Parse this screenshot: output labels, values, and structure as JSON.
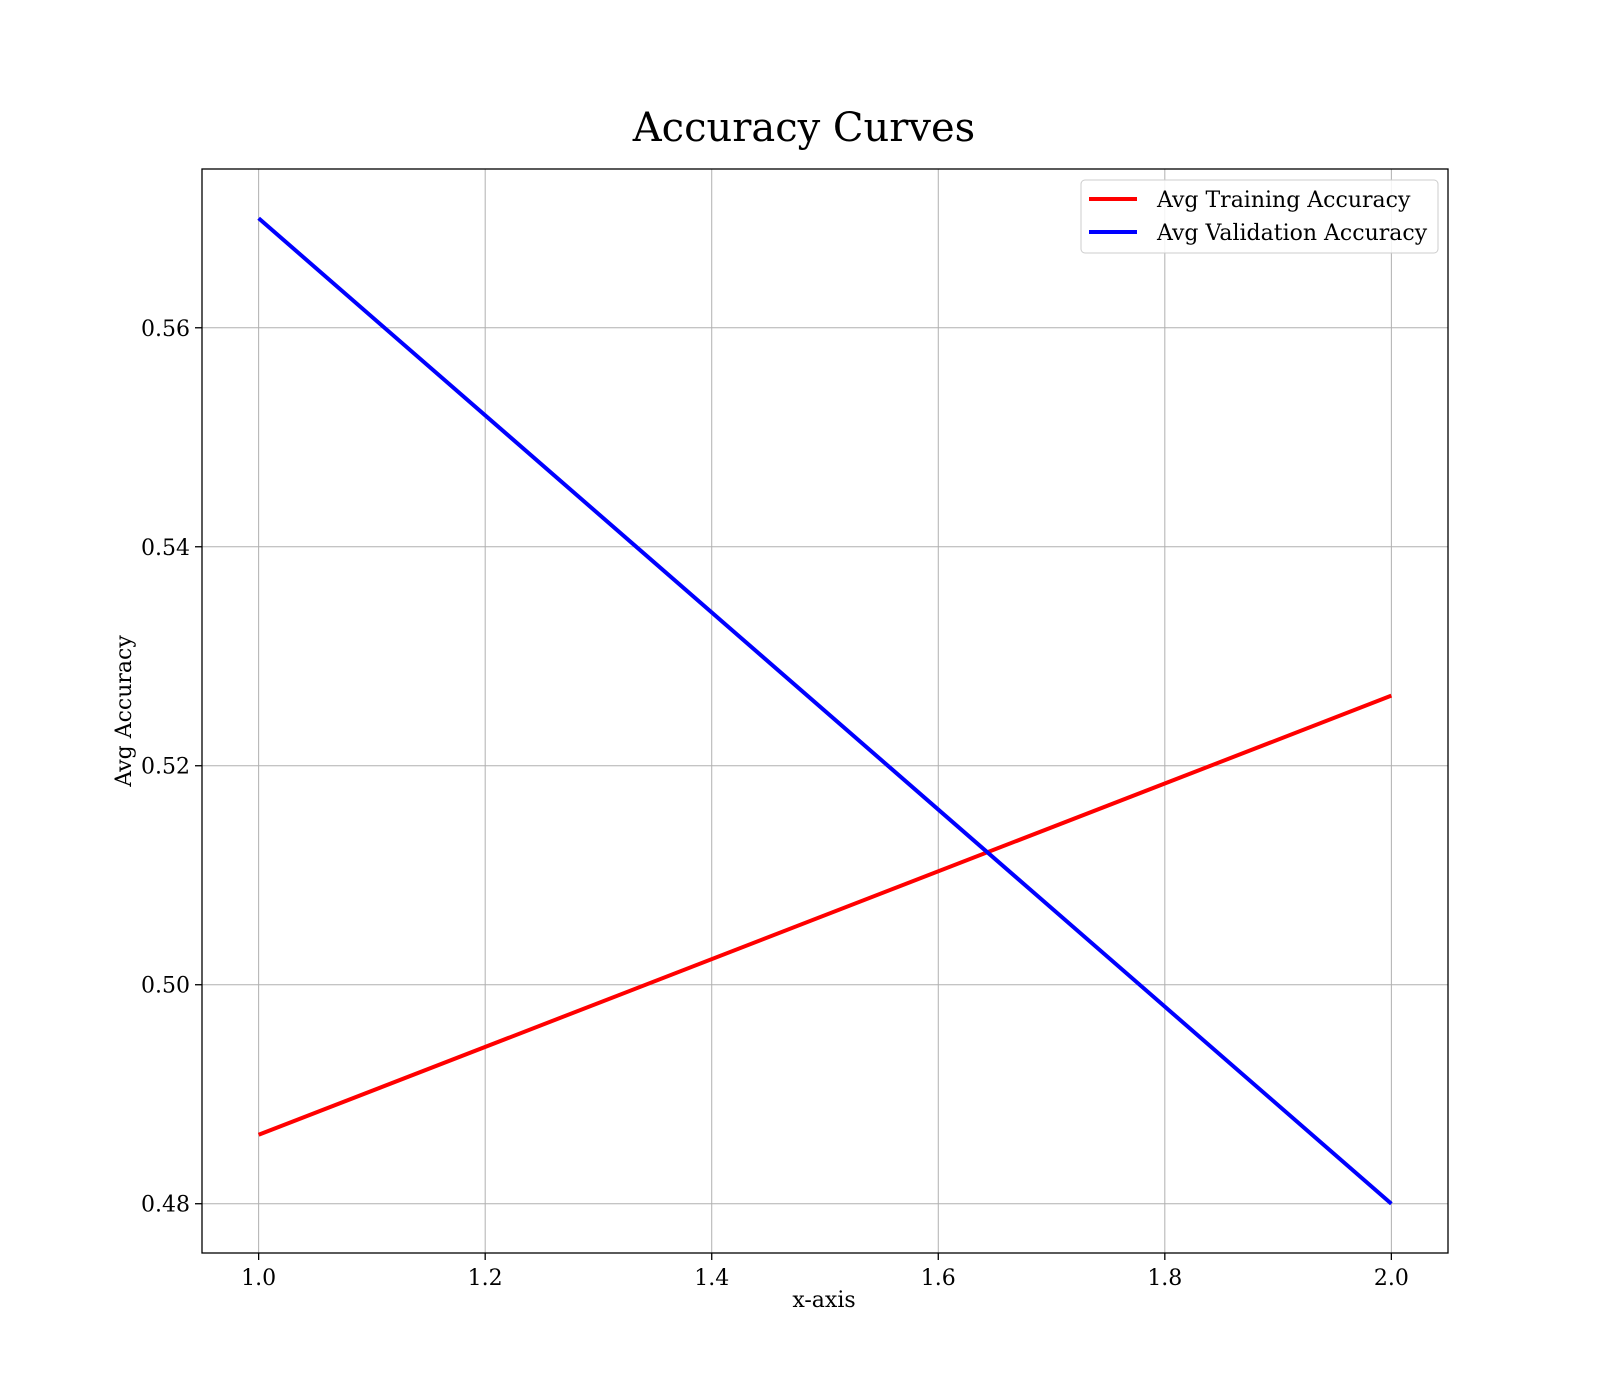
{
  "chart_data": {
    "type": "line",
    "title": "Accuracy Curves",
    "xlabel": "x-axis",
    "ylabel": "Avg Accuracy",
    "xlim": [
      0.95,
      2.05
    ],
    "ylim": [
      0.4755,
      0.5745
    ],
    "x_ticks": [
      "1.0",
      "1.2",
      "1.4",
      "1.6",
      "1.8",
      "2.0"
    ],
    "y_ticks": [
      "0.48",
      "0.50",
      "0.52",
      "0.54",
      "0.56"
    ],
    "grid": true,
    "legend_position": "top-right",
    "series": [
      {
        "name": "Avg Training Accuracy",
        "color": "#ff0000",
        "x": [
          1.0,
          2.0
        ],
        "y": [
          0.4863,
          0.5264
        ]
      },
      {
        "name": "Avg Validation Accuracy",
        "color": "#0000ff",
        "x": [
          1.0,
          2.0
        ],
        "y": [
          0.57,
          0.48
        ]
      }
    ]
  }
}
